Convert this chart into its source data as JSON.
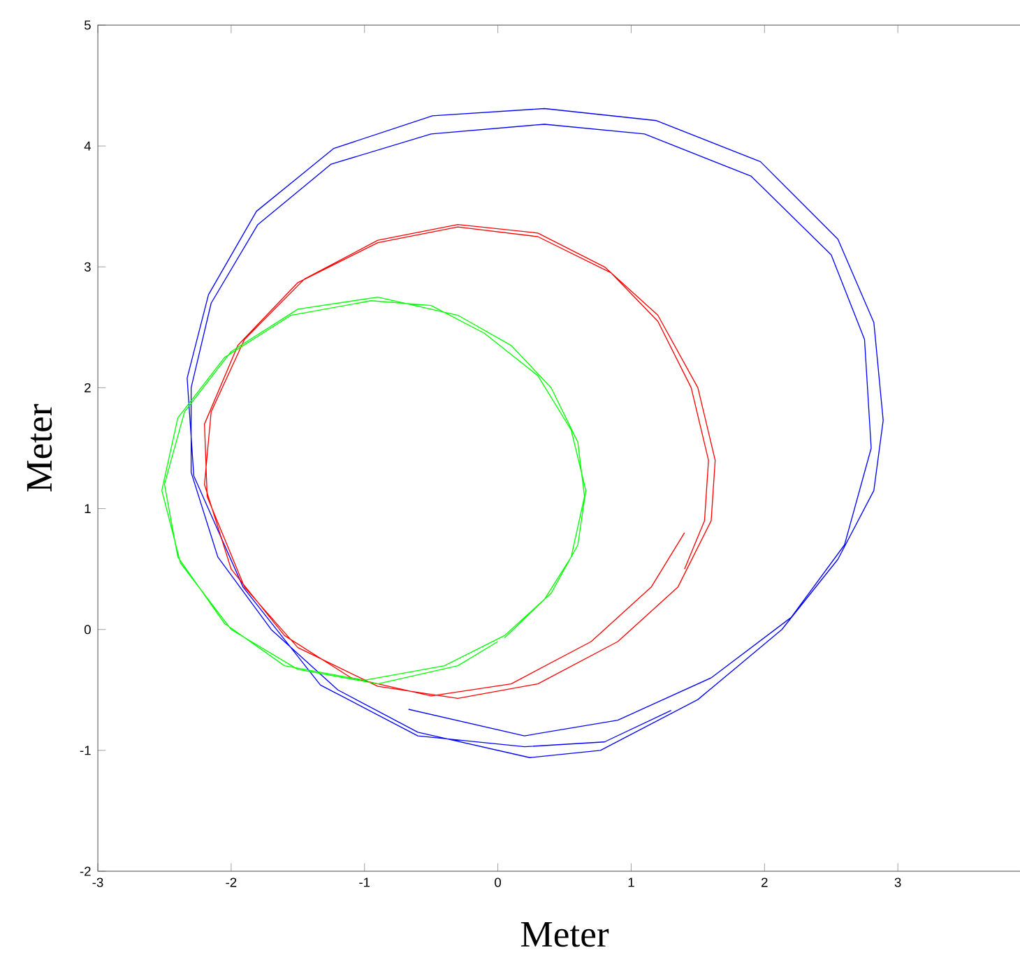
{
  "chart_data": {
    "type": "line",
    "xlabel": "Meter",
    "ylabel": "Meter",
    "xlim": [
      -3,
      4
    ],
    "ylim": [
      -2,
      5
    ],
    "xticks": [
      -3,
      -2,
      -1,
      0,
      1,
      2,
      3
    ],
    "yticks": [
      -2,
      -1,
      0,
      1,
      2,
      3,
      4,
      5
    ],
    "grid": false,
    "legend": false,
    "marker": "none",
    "line_style": "solid",
    "series": [
      {
        "color": "#0000ff",
        "x": [
          -0.67,
          0.2,
          0.9,
          1.6,
          2.2,
          2.6,
          2.8,
          2.75,
          2.5,
          1.9,
          1.1,
          0.35,
          -0.5,
          -1.25,
          -1.8,
          -2.15,
          -2.3,
          -2.3,
          -2.1,
          -1.7,
          -1.2,
          -0.6,
          0.24,
          0.77,
          1.5,
          2.13,
          2.55,
          2.82,
          2.89,
          2.82,
          2.55,
          1.97,
          1.19,
          0.35,
          -0.49,
          -1.23,
          -1.81,
          -2.17,
          -2.33,
          -2.28,
          -1.91,
          -1.33,
          -0.6,
          0.2,
          0.8,
          1.3
        ],
        "values": [
          -0.66,
          -0.88,
          -0.75,
          -0.4,
          0.1,
          0.7,
          1.5,
          2.4,
          3.1,
          3.75,
          4.1,
          4.18,
          4.1,
          3.85,
          3.35,
          2.7,
          2.0,
          1.3,
          0.6,
          0.0,
          -0.5,
          -0.85,
          -1.06,
          -1.0,
          -0.58,
          0.0,
          0.58,
          1.15,
          1.73,
          2.54,
          3.23,
          3.87,
          4.21,
          4.31,
          4.25,
          3.98,
          3.46,
          2.77,
          2.08,
          1.27,
          0.35,
          -0.46,
          -0.88,
          -0.97,
          -0.93,
          -0.67
        ]
      },
      {
        "color": "#ff0000",
        "x": [
          1.4,
          1.15,
          0.7,
          0.1,
          -0.5,
          -1.1,
          -1.6,
          -2.0,
          -2.2,
          -2.15,
          -1.9,
          -1.45,
          -0.9,
          -0.3,
          0.3,
          0.8,
          1.2,
          1.5,
          1.63,
          1.6,
          1.35,
          0.9,
          0.3,
          -0.3,
          -0.9,
          -1.5,
          -1.9,
          -2.18,
          -2.2,
          -1.95,
          -1.5,
          -0.9,
          -0.3,
          0.3,
          0.85,
          1.2,
          1.45,
          1.58,
          1.55,
          1.4
        ],
        "values": [
          0.8,
          0.35,
          -0.1,
          -0.45,
          -0.55,
          -0.4,
          -0.05,
          0.5,
          1.2,
          1.8,
          2.4,
          2.9,
          3.22,
          3.35,
          3.28,
          3.0,
          2.6,
          2.0,
          1.4,
          0.9,
          0.35,
          -0.1,
          -0.45,
          -0.57,
          -0.47,
          -0.15,
          0.35,
          1.1,
          1.7,
          2.35,
          2.87,
          3.2,
          3.33,
          3.25,
          2.95,
          2.55,
          2.0,
          1.4,
          0.9,
          0.5
        ]
      },
      {
        "color": "#00ff00",
        "x": [
          0.05,
          0.35,
          0.55,
          0.65,
          0.6,
          0.4,
          0.1,
          -0.3,
          -0.9,
          -1.5,
          -2.0,
          -2.35,
          -2.5,
          -2.4,
          -2.05,
          -1.6,
          -1.0,
          -0.4,
          0.05,
          0.4,
          0.6,
          0.66,
          0.55,
          0.3,
          -0.1,
          -0.5,
          -0.95,
          -1.55,
          -2.05,
          -2.4,
          -2.52,
          -2.38,
          -2.0,
          -1.5,
          -0.9,
          -0.3,
          0.0
        ],
        "values": [
          -0.07,
          0.25,
          0.6,
          1.1,
          1.55,
          2.0,
          2.35,
          2.6,
          2.75,
          2.65,
          2.3,
          1.8,
          1.2,
          0.6,
          0.05,
          -0.3,
          -0.42,
          -0.3,
          -0.05,
          0.3,
          0.7,
          1.15,
          1.65,
          2.1,
          2.45,
          2.68,
          2.72,
          2.6,
          2.25,
          1.75,
          1.15,
          0.55,
          0.0,
          -0.33,
          -0.45,
          -0.3,
          -0.1
        ]
      }
    ]
  }
}
